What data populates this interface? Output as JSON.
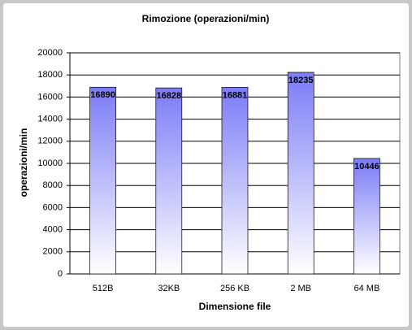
{
  "chart_data": {
    "type": "bar",
    "title": "Rimozione (operazioni/min)",
    "x_label": "Dimensione file",
    "y_label": "operazioni/min",
    "categories": [
      "512B",
      "32KB",
      "256 KB",
      "2 MB",
      "64 MB"
    ],
    "values": [
      16890,
      16828,
      16881,
      18235,
      10446
    ],
    "color": "#7b7bf7",
    "ylim": [
      0,
      20000
    ],
    "yticks": [
      0,
      2000,
      4000,
      6000,
      8000,
      10000,
      12000,
      14000,
      16000,
      18000,
      20000
    ],
    "grid": true
  }
}
